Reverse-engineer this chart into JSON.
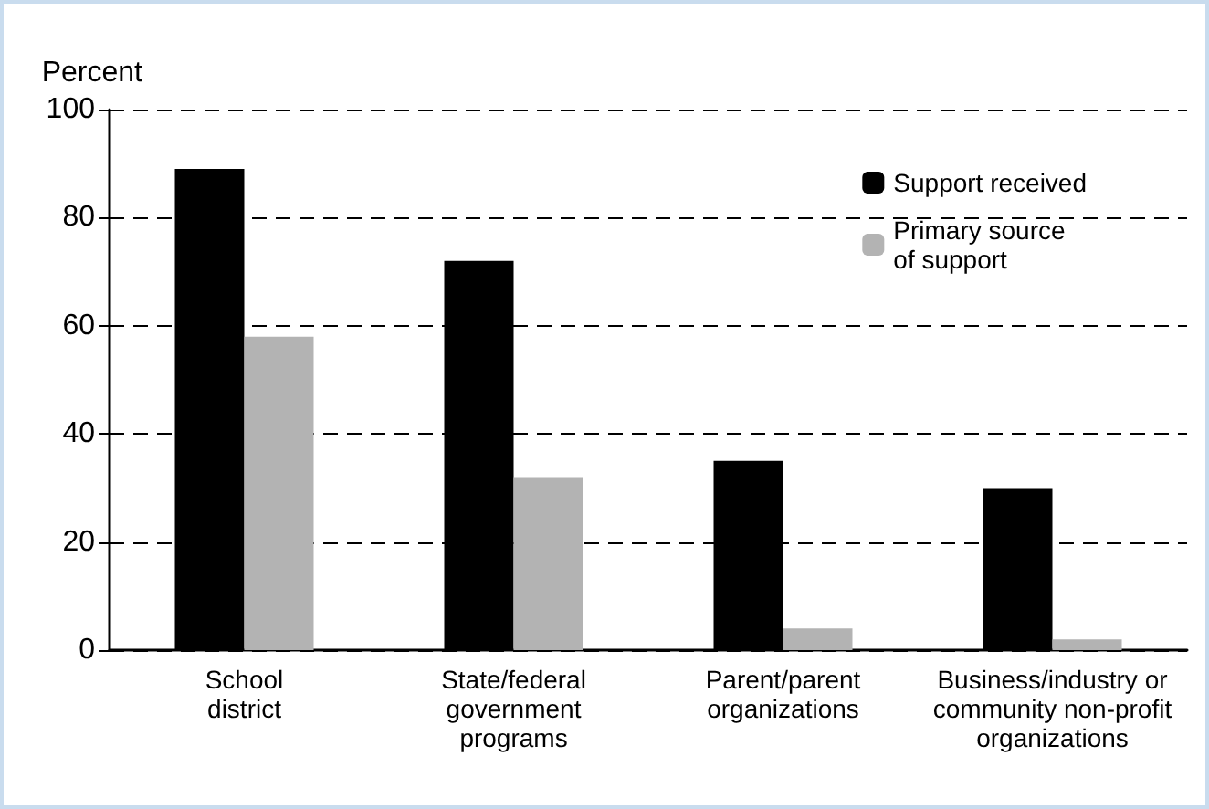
{
  "chart_data": {
    "type": "bar",
    "ylabel": "Percent",
    "categories": [
      "School\ndistrict",
      "State/federal\ngovernment\nprograms",
      "Parent/parent\norganizations",
      "Business/industry or\ncommunity non-profit\norganizations"
    ],
    "series": [
      {
        "name": "Support received",
        "color": "#000000",
        "values": [
          89,
          72,
          35,
          30
        ]
      },
      {
        "name": "Primary source\nof support",
        "color": "#b3b3b3",
        "values": [
          58,
          32,
          4,
          2
        ]
      }
    ],
    "ylim": [
      0,
      100
    ],
    "yticks": [
      0,
      20,
      40,
      60,
      80,
      100
    ],
    "grid": "y",
    "legend": "top right"
  }
}
